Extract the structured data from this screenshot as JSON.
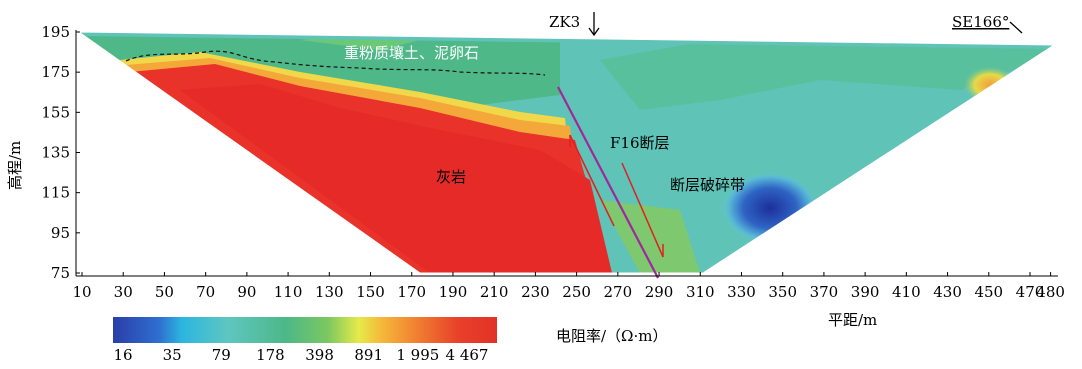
{
  "figure": {
    "top_marker": "ZK3",
    "direction_label": "SE166°",
    "y_axis_label": "高程/m",
    "x_axis_label": "平距/m",
    "colorbar_label": "电阻率/（Ω·m）",
    "y_ticks": [
      "195",
      "175",
      "155",
      "135",
      "115",
      "95",
      "75"
    ],
    "x_ticks": [
      "10",
      "30",
      "50",
      "70",
      "90",
      "110",
      "130",
      "150",
      "170",
      "190",
      "210",
      "230",
      "250",
      "270",
      "290",
      "310",
      "330",
      "350",
      "370",
      "390",
      "410",
      "430",
      "450",
      "470",
      "480"
    ],
    "colorbar_ticks": [
      "16",
      "35",
      "79",
      "178",
      "398",
      "891",
      "1 995",
      "4 467"
    ],
    "annotations": {
      "soil": "重粉质壤土、泥卵石",
      "fault": "F16断层",
      "limestone": "灰岩",
      "fracture_zone": "断层破碎带"
    },
    "colors": {
      "low_resistivity": "#2443a8",
      "mid_resistivity": "#5fc3b8",
      "high_resistivity": "#e8302a",
      "fault_line": "#a0289a",
      "arrow": "#e02020",
      "soil_text": "#ffffff"
    }
  }
}
